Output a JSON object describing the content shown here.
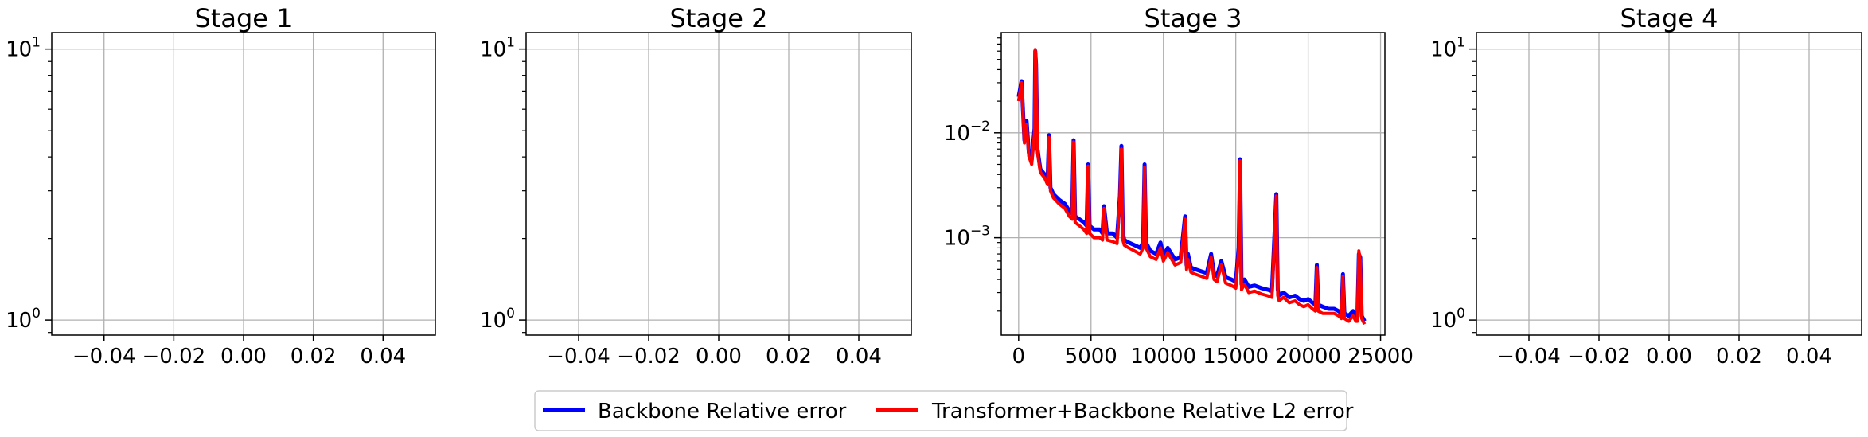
{
  "chart_data": [
    {
      "type": "line",
      "title": "Stage 1",
      "xlabel": "",
      "ylabel": "",
      "yscale": "log",
      "xlim": [
        -0.055,
        0.055
      ],
      "ylim": [
        0.88,
        11.5
      ],
      "x_ticks": [
        -0.04,
        -0.02,
        0.0,
        0.02,
        0.04
      ],
      "x_tick_labels": [
        "−0.04",
        "−0.02",
        "0.00",
        "0.02",
        "0.04"
      ],
      "y_ticks": [
        1,
        10
      ],
      "y_tick_labels": [
        {
          "base": "10",
          "exp": "0"
        },
        {
          "base": "10",
          "exp": "1"
        }
      ],
      "grid": true,
      "series": []
    },
    {
      "type": "line",
      "title": "Stage 2",
      "xlabel": "",
      "ylabel": "",
      "yscale": "log",
      "xlim": [
        -0.055,
        0.055
      ],
      "ylim": [
        0.88,
        11.5
      ],
      "x_ticks": [
        -0.04,
        -0.02,
        0.0,
        0.02,
        0.04
      ],
      "x_tick_labels": [
        "−0.04",
        "−0.02",
        "0.00",
        "0.02",
        "0.04"
      ],
      "y_ticks": [
        1,
        10
      ],
      "y_tick_labels": [
        {
          "base": "10",
          "exp": "0"
        },
        {
          "base": "10",
          "exp": "1"
        }
      ],
      "grid": true,
      "series": []
    },
    {
      "type": "line",
      "title": "Stage 3",
      "xlabel": "",
      "ylabel": "",
      "yscale": "log",
      "xlim": [
        -1200,
        25300
      ],
      "ylim": [
        0.000118,
        0.09
      ],
      "x_ticks": [
        0,
        5000,
        10000,
        15000,
        20000,
        25000
      ],
      "x_tick_labels": [
        "0",
        "5000",
        "10000",
        "15000",
        "20000",
        "25000"
      ],
      "y_ticks": [
        0.001,
        0.01
      ],
      "y_tick_labels": [
        {
          "base": "10",
          "exp": "−3"
        },
        {
          "base": "10",
          "exp": "−2"
        }
      ],
      "grid": true,
      "series": [
        {
          "name": "Backbone Relative error",
          "color": "#0000ff",
          "x": [
            0,
            200,
            400,
            550,
            700,
            900,
            1100,
            1150,
            1200,
            1300,
            1500,
            1800,
            2000,
            2100,
            2200,
            2400,
            2800,
            3200,
            3500,
            3700,
            3800,
            3900,
            4200,
            4500,
            4700,
            4800,
            4900,
            5200,
            5600,
            5800,
            5900,
            6100,
            6500,
            6800,
            7000,
            7100,
            7200,
            7300,
            7600,
            8000,
            8400,
            8600,
            8700,
            8800,
            9100,
            9500,
            9800,
            10000,
            10300,
            10800,
            11200,
            11500,
            11600,
            11700,
            11900,
            12200,
            12600,
            13000,
            13300,
            13500,
            13700,
            14000,
            14300,
            14700,
            15000,
            15200,
            15300,
            15400,
            15600,
            15900,
            16300,
            16800,
            17200,
            17500,
            17800,
            17900,
            18000,
            18300,
            18700,
            19100,
            19400,
            19700,
            20000,
            20300,
            20500,
            20600,
            20700,
            21000,
            21400,
            21800,
            22100,
            22300,
            22400,
            22500,
            22800,
            23100,
            23300,
            23400,
            23500,
            23600,
            23700,
            23900
          ],
          "y": [
            0.022,
            0.031,
            0.0085,
            0.013,
            0.0065,
            0.0055,
            0.011,
            0.06,
            0.045,
            0.007,
            0.0045,
            0.004,
            0.0035,
            0.0095,
            0.003,
            0.0026,
            0.0023,
            0.0021,
            0.0018,
            0.0017,
            0.0085,
            0.0016,
            0.0015,
            0.0014,
            0.0013,
            0.005,
            0.0013,
            0.0012,
            0.0012,
            0.0011,
            0.002,
            0.0011,
            0.0011,
            0.001,
            0.0025,
            0.0075,
            0.0011,
            0.00095,
            0.0009,
            0.00085,
            0.0008,
            0.0009,
            0.005,
            0.0009,
            0.00075,
            0.0007,
            0.0009,
            0.00068,
            0.0008,
            0.00062,
            0.00065,
            0.0016,
            0.00055,
            0.0007,
            0.00052,
            0.0005,
            0.00048,
            0.00046,
            0.0007,
            0.00045,
            0.00043,
            0.0006,
            0.00042,
            0.0004,
            0.00038,
            0.0008,
            0.0056,
            0.00036,
            0.0004,
            0.00034,
            0.00035,
            0.00033,
            0.00032,
            0.00031,
            0.0026,
            0.00032,
            0.00028,
            0.0003,
            0.00027,
            0.00028,
            0.00026,
            0.00025,
            0.00026,
            0.00024,
            0.00023,
            0.00055,
            0.00023,
            0.00022,
            0.00021,
            0.00021,
            0.0002,
            0.00019,
            0.00045,
            0.00019,
            0.00018,
            0.0002,
            0.00018,
            0.00017,
            0.0007,
            0.00065,
            0.00018,
            0.00016
          ]
        },
        {
          "name": "Transformer+Backbone Relative L2 error",
          "color": "#ff0000",
          "x": [
            0,
            200,
            400,
            550,
            700,
            900,
            1100,
            1150,
            1200,
            1300,
            1500,
            1800,
            2000,
            2100,
            2200,
            2400,
            2800,
            3200,
            3500,
            3700,
            3800,
            3900,
            4200,
            4500,
            4700,
            4800,
            4900,
            5200,
            5600,
            5800,
            5900,
            6100,
            6500,
            6800,
            7000,
            7100,
            7200,
            7300,
            7600,
            8000,
            8400,
            8600,
            8700,
            8800,
            9100,
            9500,
            9800,
            10000,
            10300,
            10800,
            11200,
            11500,
            11600,
            11700,
            11900,
            12200,
            12600,
            13000,
            13300,
            13500,
            13700,
            14000,
            14300,
            14700,
            15000,
            15200,
            15300,
            15400,
            15600,
            15900,
            16300,
            16800,
            17200,
            17500,
            17800,
            17900,
            18000,
            18300,
            18700,
            19100,
            19400,
            19700,
            20000,
            20300,
            20500,
            20600,
            20700,
            21000,
            21400,
            21800,
            22100,
            22300,
            22400,
            22500,
            22800,
            23100,
            23300,
            23400,
            23500,
            23600,
            23700,
            23900
          ],
          "y": [
            0.02,
            0.03,
            0.008,
            0.012,
            0.006,
            0.005,
            0.01,
            0.062,
            0.05,
            0.0065,
            0.0042,
            0.0037,
            0.0032,
            0.009,
            0.0028,
            0.0024,
            0.0021,
            0.0019,
            0.0016,
            0.0015,
            0.0082,
            0.0014,
            0.0013,
            0.0012,
            0.0011,
            0.0048,
            0.0011,
            0.001,
            0.001,
            0.00095,
            0.0019,
            0.00095,
            0.00092,
            0.00088,
            0.0024,
            0.007,
            0.00095,
            0.00085,
            0.0008,
            0.00075,
            0.0007,
            0.0008,
            0.0047,
            0.0008,
            0.00066,
            0.00062,
            0.0008,
            0.0006,
            0.00072,
            0.00055,
            0.00058,
            0.0015,
            0.0005,
            0.00062,
            0.00047,
            0.00045,
            0.00043,
            0.00041,
            0.00065,
            0.0004,
            0.00038,
            0.00055,
            0.00037,
            0.00035,
            0.00033,
            0.00075,
            0.0054,
            0.00032,
            0.00036,
            0.0003,
            0.00031,
            0.00029,
            0.00028,
            0.00027,
            0.0025,
            0.00028,
            0.00025,
            0.00027,
            0.00024,
            0.00025,
            0.00023,
            0.00022,
            0.00023,
            0.00021,
            0.0002,
            0.00052,
            0.0002,
            0.00019,
            0.00019,
            0.00019,
            0.00018,
            0.00017,
            0.00043,
            0.00017,
            0.00016,
            0.00018,
            0.00016,
            0.00016,
            0.00075,
            0.0006,
            0.00017,
            0.00015
          ]
        }
      ]
    },
    {
      "type": "line",
      "title": "Stage 4",
      "xlabel": "",
      "ylabel": "",
      "yscale": "log",
      "xlim": [
        -0.055,
        0.055
      ],
      "ylim": [
        0.88,
        11.5
      ],
      "x_ticks": [
        -0.04,
        -0.02,
        0.0,
        0.02,
        0.04
      ],
      "x_tick_labels": [
        "−0.04",
        "−0.02",
        "0.00",
        "0.02",
        "0.04"
      ],
      "y_ticks": [
        1,
        10
      ],
      "y_tick_labels": [
        {
          "base": "10",
          "exp": "0"
        },
        {
          "base": "10",
          "exp": "1"
        }
      ],
      "grid": true,
      "series": []
    }
  ],
  "legend": {
    "placement": "bottom-center",
    "entries": [
      {
        "label": "Backbone Relative error",
        "color": "#0000ff"
      },
      {
        "label": "Transformer+Backbone Relative L2 error",
        "color": "#ff0000"
      }
    ]
  }
}
